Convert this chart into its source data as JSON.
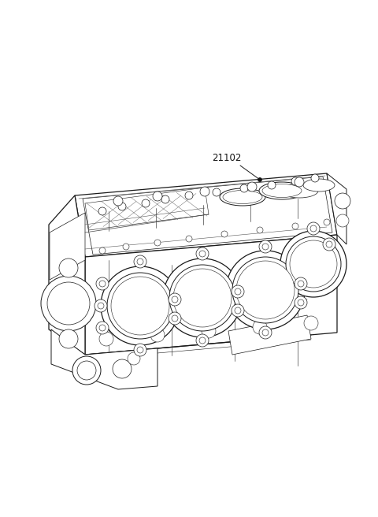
{
  "background_color": "#ffffff",
  "line_color": "#1a1a1a",
  "label_text": "21102",
  "label_fontsize": 8.5,
  "fig_width": 4.8,
  "fig_height": 6.56,
  "dpi": 100,
  "lw": 0.7,
  "lw_thick": 0.9
}
